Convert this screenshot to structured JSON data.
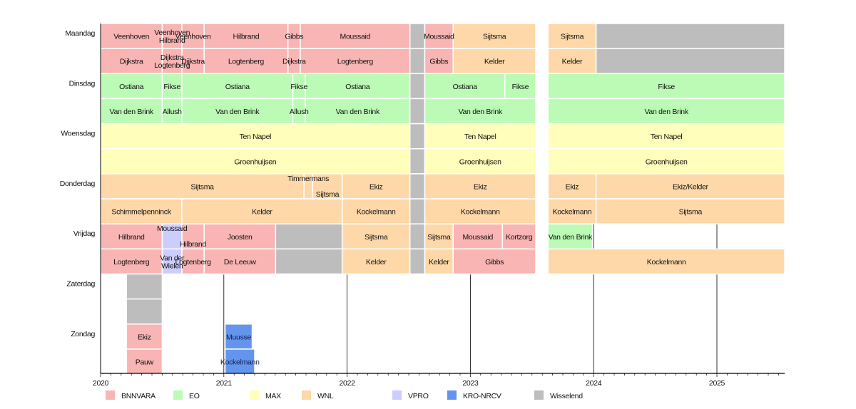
{
  "chart_data": {
    "type": "timeline",
    "xlim": [
      2020,
      2025.55
    ],
    "x_ticks": [
      "2020",
      "2021",
      "2022",
      "2023",
      "2024",
      "2025"
    ],
    "grid": "vertical lines at years",
    "legend_placement": "bottom",
    "broadcasters": [
      {
        "name": "BNNVARA",
        "color": "#f9b4b4"
      },
      {
        "name": "EO",
        "color": "#bbfbb5"
      },
      {
        "name": "MAX",
        "color": "#ffffbb"
      },
      {
        "name": "WNL",
        "color": "#fed8a8"
      },
      {
        "name": "VPRO",
        "color": "#ccccff"
      },
      {
        "name": "KRO-NRCV",
        "color": "#6495ed"
      },
      {
        "name": "Wisselend",
        "color": "#bdbdbd"
      }
    ],
    "days": [
      "Maandag",
      "Dinsdag",
      "Woensdag",
      "Donderdag",
      "Vrijdag",
      "Zaterdag",
      "Zondag"
    ],
    "rows": [
      {
        "day": 0,
        "sub": 0,
        "segments": [
          {
            "label": "Veenhoven",
            "b": "BNNVARA",
            "start": 2020.0,
            "end": 2020.5
          },
          {
            "label": "Veenhoven\nHilbrand",
            "b": "BNNVARA",
            "start": 2020.5,
            "end": 2020.66
          },
          {
            "label": "Veenhoven",
            "b": "BNNVARA",
            "start": 2020.66,
            "end": 2020.84
          },
          {
            "label": "Hilbrand",
            "b": "BNNVARA",
            "start": 2020.84,
            "end": 2021.52
          },
          {
            "label": "Gibbs",
            "b": "BNNVARA",
            "start": 2021.52,
            "end": 2021.62
          },
          {
            "label": "Moussaid",
            "b": "BNNVARA",
            "start": 2021.62,
            "end": 2022.51
          },
          {
            "label": "",
            "b": "Wisselend",
            "start": 2022.51,
            "end": 2022.63
          },
          {
            "label": "Moussaid",
            "b": "BNNVARA",
            "start": 2022.63,
            "end": 2022.86
          },
          {
            "label": "Sijtsma",
            "b": "WNL",
            "start": 2022.86,
            "end": 2023.53
          },
          {
            "label": "Sijtsma",
            "b": "WNL",
            "start": 2023.63,
            "end": 2024.02
          },
          {
            "label": "",
            "b": "Wisselend",
            "start": 2024.02,
            "end": 2025.55
          }
        ]
      },
      {
        "day": 0,
        "sub": 1,
        "segments": [
          {
            "label": "Dijkstra",
            "b": "BNNVARA",
            "start": 2020.0,
            "end": 2020.5
          },
          {
            "label": "Dijkstra\nLogtenberg",
            "b": "BNNVARA",
            "start": 2020.5,
            "end": 2020.66
          },
          {
            "label": "Dijkstra",
            "b": "BNNVARA",
            "start": 2020.66,
            "end": 2020.84
          },
          {
            "label": "Logtenberg",
            "b": "BNNVARA",
            "start": 2020.84,
            "end": 2021.52
          },
          {
            "label": "Dijkstra",
            "b": "BNNVARA",
            "start": 2021.52,
            "end": 2021.62
          },
          {
            "label": "Logtenberg",
            "b": "BNNVARA",
            "start": 2021.62,
            "end": 2022.51
          },
          {
            "label": "",
            "b": "Wisselend",
            "start": 2022.51,
            "end": 2022.63
          },
          {
            "label": "Gibbs",
            "b": "BNNVARA",
            "start": 2022.63,
            "end": 2022.86
          },
          {
            "label": "Kelder",
            "b": "WNL",
            "start": 2022.86,
            "end": 2023.53
          },
          {
            "label": "Kelder",
            "b": "WNL",
            "start": 2023.63,
            "end": 2024.02
          },
          {
            "label": "",
            "b": "Wisselend",
            "start": 2024.02,
            "end": 2025.55
          }
        ]
      },
      {
        "day": 1,
        "sub": 0,
        "segments": [
          {
            "label": "Ostiana",
            "b": "EO",
            "start": 2020.0,
            "end": 2020.5
          },
          {
            "label": "Fikse",
            "b": "EO",
            "start": 2020.5,
            "end": 2020.66
          },
          {
            "label": "Ostiana",
            "b": "EO",
            "start": 2020.66,
            "end": 2021.56
          },
          {
            "label": "Fikse",
            "b": "EO",
            "start": 2021.56,
            "end": 2021.66
          },
          {
            "label": "Ostiana",
            "b": "EO",
            "start": 2021.66,
            "end": 2022.51
          },
          {
            "label": "",
            "b": "Wisselend",
            "start": 2022.51,
            "end": 2022.63
          },
          {
            "label": "Ostiana",
            "b": "EO",
            "start": 2022.63,
            "end": 2023.28
          },
          {
            "label": "Fikse",
            "b": "EO",
            "start": 2023.28,
            "end": 2023.53
          },
          {
            "label": "Fikse",
            "b": "EO",
            "start": 2023.63,
            "end": 2025.55
          }
        ]
      },
      {
        "day": 1,
        "sub": 1,
        "segments": [
          {
            "label": "Van den Brink",
            "b": "EO",
            "start": 2020.0,
            "end": 2020.5
          },
          {
            "label": "Allush",
            "b": "EO",
            "start": 2020.5,
            "end": 2020.66
          },
          {
            "label": "Van den Brink",
            "b": "EO",
            "start": 2020.66,
            "end": 2021.56
          },
          {
            "label": "Allush",
            "b": "EO",
            "start": 2021.56,
            "end": 2021.66
          },
          {
            "label": "Van den Brink",
            "b": "EO",
            "start": 2021.66,
            "end": 2022.51
          },
          {
            "label": "",
            "b": "Wisselend",
            "start": 2022.51,
            "end": 2022.63
          },
          {
            "label": "Van den Brink",
            "b": "EO",
            "start": 2022.63,
            "end": 2023.53
          },
          {
            "label": "Van den Brink",
            "b": "EO",
            "start": 2023.63,
            "end": 2025.55
          }
        ]
      },
      {
        "day": 2,
        "sub": 0,
        "segments": [
          {
            "label": "Ten Napel",
            "b": "MAX",
            "start": 2020.0,
            "end": 2022.51
          },
          {
            "label": "",
            "b": "Wisselend",
            "start": 2022.51,
            "end": 2022.63
          },
          {
            "label": "Ten Napel",
            "b": "MAX",
            "start": 2022.63,
            "end": 2023.53
          },
          {
            "label": "Ten Napel",
            "b": "MAX",
            "start": 2023.63,
            "end": 2025.55
          }
        ]
      },
      {
        "day": 2,
        "sub": 1,
        "segments": [
          {
            "label": "Groenhuijsen",
            "b": "MAX",
            "start": 2020.0,
            "end": 2022.51
          },
          {
            "label": "",
            "b": "Wisselend",
            "start": 2022.51,
            "end": 2022.63
          },
          {
            "label": "Groenhuijsen",
            "b": "MAX",
            "start": 2022.63,
            "end": 2023.53
          },
          {
            "label": "Groenhuijsen",
            "b": "MAX",
            "start": 2023.63,
            "end": 2025.55
          }
        ]
      },
      {
        "day": 3,
        "sub": 0,
        "segments": [
          {
            "label": "Sijtsma",
            "b": "WNL",
            "start": 2020.0,
            "end": 2021.65
          },
          {
            "label": "Timmermans",
            "b": "WNL",
            "start": 2021.65,
            "end": 2021.72
          },
          {
            "label": "Sijtsma",
            "b": "WNL",
            "start": 2021.72,
            "end": 2021.96
          },
          {
            "label": "Ekiz",
            "b": "WNL",
            "start": 2021.96,
            "end": 2022.51
          },
          {
            "label": "",
            "b": "Wisselend",
            "start": 2022.51,
            "end": 2022.63
          },
          {
            "label": "Ekiz",
            "b": "WNL",
            "start": 2022.63,
            "end": 2023.53
          },
          {
            "label": "Ekiz",
            "b": "WNL",
            "start": 2023.63,
            "end": 2024.02
          },
          {
            "label": "Ekiz/Kelder",
            "b": "WNL",
            "start": 2024.02,
            "end": 2025.55
          }
        ]
      },
      {
        "day": 3,
        "sub": 1,
        "segments": [
          {
            "label": "Schimmelpenninck",
            "b": "WNL",
            "start": 2020.0,
            "end": 2020.66
          },
          {
            "label": "Kelder",
            "b": "WNL",
            "start": 2020.66,
            "end": 2021.96
          },
          {
            "label": "Kockelmann",
            "b": "WNL",
            "start": 2021.96,
            "end": 2022.51
          },
          {
            "label": "",
            "b": "Wisselend",
            "start": 2022.51,
            "end": 2022.63
          },
          {
            "label": "Kockelmann",
            "b": "WNL",
            "start": 2022.63,
            "end": 2023.53
          },
          {
            "label": "Kockelmann",
            "b": "WNL",
            "start": 2023.63,
            "end": 2024.02
          },
          {
            "label": "Sijtsma",
            "b": "WNL",
            "start": 2024.02,
            "end": 2025.55
          }
        ]
      },
      {
        "day": 4,
        "sub": 0,
        "segments": [
          {
            "label": "Hilbrand",
            "b": "BNNVARA",
            "start": 2020.0,
            "end": 2020.5
          },
          {
            "label": "Moussaid",
            "b": "VPRO",
            "start": 2020.5,
            "end": 2020.66
          },
          {
            "label": "Hilbrand",
            "b": "BNNVARA",
            "start": 2020.66,
            "end": 2020.84
          },
          {
            "label": "Joosten",
            "b": "BNNVARA",
            "start": 2020.84,
            "end": 2021.42
          },
          {
            "label": "",
            "b": "Wisselend",
            "start": 2021.42,
            "end": 2021.96
          },
          {
            "label": "Sijtsma",
            "b": "WNL",
            "start": 2021.96,
            "end": 2022.51
          },
          {
            "label": "",
            "b": "Wisselend",
            "start": 2022.51,
            "end": 2022.63
          },
          {
            "label": "Sijtsma",
            "b": "WNL",
            "start": 2022.63,
            "end": 2022.86
          },
          {
            "label": "Moussaid",
            "b": "BNNVARA",
            "start": 2022.86,
            "end": 2023.26
          },
          {
            "label": "Kortzorg",
            "b": "BNNVARA",
            "start": 2023.26,
            "end": 2023.53
          },
          {
            "label": "Van den Brink",
            "b": "EO",
            "start": 2023.63,
            "end": 2023.99
          }
        ]
      },
      {
        "day": 4,
        "sub": 1,
        "segments": [
          {
            "label": "Logtenberg",
            "b": "BNNVARA",
            "start": 2020.0,
            "end": 2020.5
          },
          {
            "label": "Van der\nWielen",
            "b": "VPRO",
            "start": 2020.5,
            "end": 2020.66
          },
          {
            "label": "Logtenberg",
            "b": "BNNVARA",
            "start": 2020.66,
            "end": 2020.84
          },
          {
            "label": "De Leeuw",
            "b": "BNNVARA",
            "start": 2020.84,
            "end": 2021.42
          },
          {
            "label": "",
            "b": "Wisselend",
            "start": 2021.42,
            "end": 2021.96
          },
          {
            "label": "Kelder",
            "b": "WNL",
            "start": 2021.96,
            "end": 2022.51
          },
          {
            "label": "",
            "b": "Wisselend",
            "start": 2022.51,
            "end": 2022.63
          },
          {
            "label": "Kelder",
            "b": "WNL",
            "start": 2022.63,
            "end": 2022.86
          },
          {
            "label": "Gibbs",
            "b": "BNNVARA",
            "start": 2022.86,
            "end": 2023.53
          },
          {
            "label": "Kockelmann",
            "b": "WNL",
            "start": 2023.63,
            "end": 2025.55
          }
        ]
      },
      {
        "day": 5,
        "sub": 0,
        "segments": [
          {
            "label": "",
            "b": "Wisselend",
            "start": 2020.21,
            "end": 2020.5
          }
        ]
      },
      {
        "day": 5,
        "sub": 1,
        "segments": [
          {
            "label": "",
            "b": "Wisselend",
            "start": 2020.21,
            "end": 2020.5
          }
        ]
      },
      {
        "day": 6,
        "sub": 0,
        "segments": [
          {
            "label": "Ekiz",
            "b": "BNNVARA",
            "start": 2020.21,
            "end": 2020.5
          },
          {
            "label": "Muusse",
            "b": "KRO-NRCV",
            "start": 2021.01,
            "end": 2021.23
          }
        ]
      },
      {
        "day": 6,
        "sub": 1,
        "segments": [
          {
            "label": "Pauw",
            "b": "BNNVARA",
            "start": 2020.21,
            "end": 2020.5
          },
          {
            "label": "Kockelmann",
            "b": "KRO-NRCV",
            "start": 2021.01,
            "end": 2021.25
          }
        ]
      }
    ]
  }
}
